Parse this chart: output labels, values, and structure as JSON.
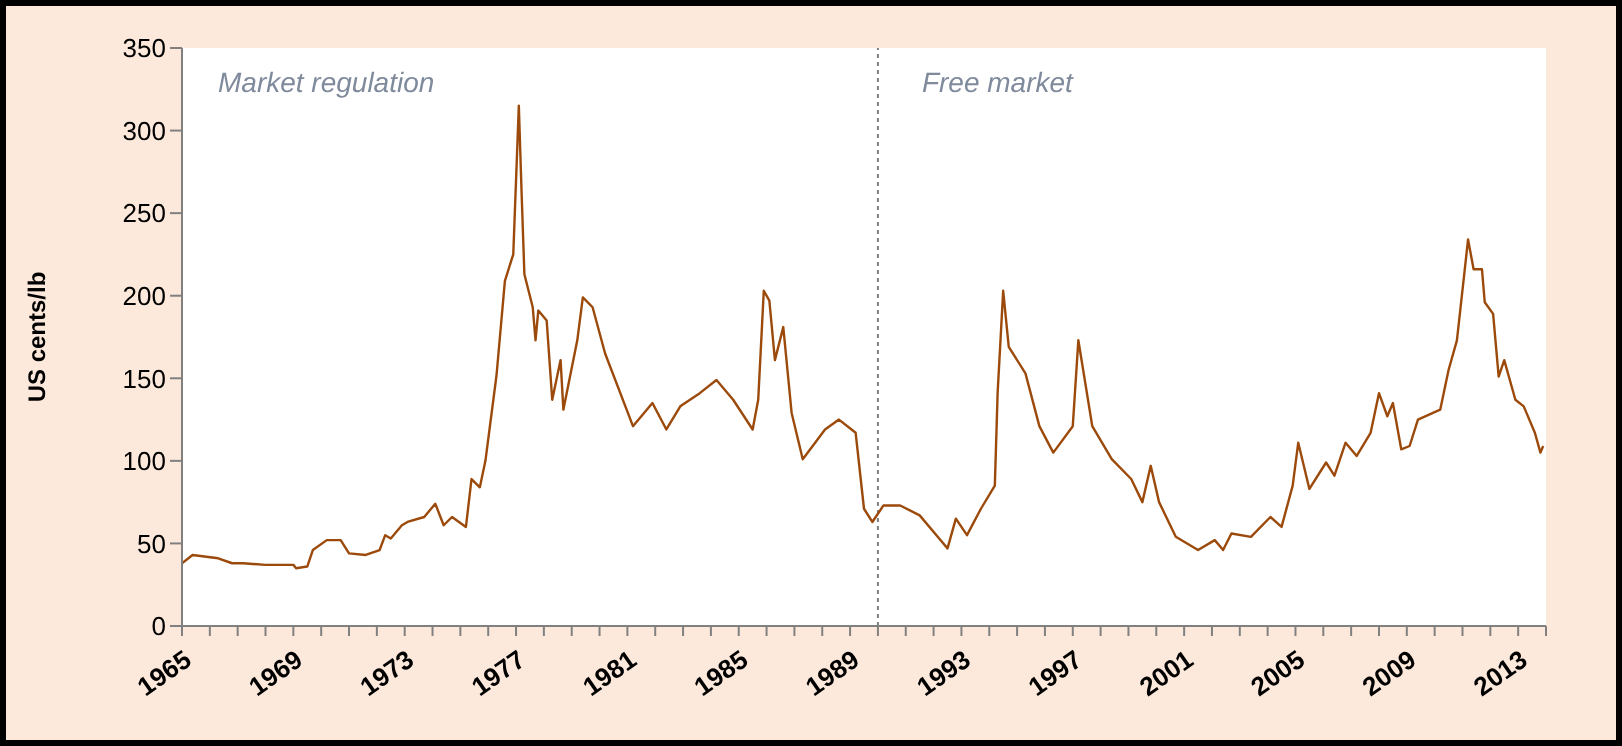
{
  "chart_data": {
    "type": "line",
    "ylabel": "US cents/lb",
    "annotations": [
      "Market regulation",
      "Free market"
    ],
    "x": [
      1965.0,
      1965.38,
      1966.3,
      1966.8,
      1967.2,
      1968.0,
      1969.0,
      1969.1,
      1969.5,
      1969.7,
      1970.2,
      1970.7,
      1971.0,
      1971.6,
      1972.1,
      1972.3,
      1972.5,
      1972.9,
      1973.1,
      1973.7,
      1974.1,
      1974.4,
      1974.7,
      1975.2,
      1975.4,
      1975.7,
      1975.9,
      1976.3,
      1976.6,
      1976.9,
      1977.1,
      1977.2,
      1977.3,
      1977.6,
      1977.7,
      1977.8,
      1978.1,
      1978.3,
      1978.6,
      1978.7,
      1979.2,
      1979.4,
      1979.75,
      1980.2,
      1981.2,
      1981.9,
      1982.4,
      1982.9,
      1983.6,
      1984.2,
      1984.8,
      1985.5,
      1985.7,
      1985.9,
      1986.1,
      1986.3,
      1986.6,
      1986.9,
      1987.3,
      1988.1,
      1988.6,
      1989.2,
      1989.5,
      1989.8,
      1990.2,
      1990.8,
      1991.5,
      1992.2,
      1992.5,
      1992.8,
      1993.2,
      1993.7,
      1994.2,
      1994.3,
      1994.5,
      1994.7,
      1995.3,
      1995.8,
      1996.3,
      1997.0,
      1997.2,
      1997.7,
      1998.4,
      1999.1,
      1999.5,
      1999.8,
      2000.1,
      2000.7,
      2001.5,
      2002.1,
      2002.4,
      2002.7,
      2003.4,
      2004.1,
      2004.5,
      2004.9,
      2005.1,
      2005.5,
      2006.1,
      2006.4,
      2006.8,
      2007.2,
      2007.7,
      2008.0,
      2008.3,
      2008.5,
      2008.8,
      2009.1,
      2009.4,
      2010.2,
      2010.5,
      2010.8,
      2011.2,
      2011.4,
      2011.7,
      2011.8,
      2012.1,
      2012.3,
      2012.5,
      2012.9,
      2013.2,
      2013.6,
      2013.8,
      2013.9
    ],
    "series": [
      {
        "color": "#9c4a0b",
        "values": [
          38,
          43,
          41,
          38,
          38,
          37,
          37,
          35,
          36,
          46,
          52,
          52,
          44,
          43,
          46,
          55,
          53,
          61,
          63,
          66,
          74,
          61,
          66,
          60,
          89,
          84,
          100,
          152,
          209,
          225,
          315,
          262,
          213,
          193,
          173,
          191,
          185,
          137,
          161,
          131,
          173,
          199,
          193,
          165,
          121,
          135,
          119,
          133,
          141,
          149,
          137,
          119,
          137,
          203,
          197,
          161,
          181,
          129,
          101,
          119,
          125,
          117,
          71,
          63,
          73,
          73,
          67,
          53,
          47,
          65,
          55,
          71,
          85,
          141,
          203,
          169,
          153,
          121,
          105,
          121,
          173,
          121,
          101,
          89,
          75,
          97,
          75,
          54,
          46,
          52,
          46,
          56,
          54,
          66,
          60,
          85,
          111,
          83,
          99,
          91,
          111,
          103,
          117,
          141,
          127,
          135,
          107,
          109,
          125,
          131,
          155,
          173,
          234,
          216,
          216,
          196,
          189,
          151,
          161,
          137,
          133,
          117,
          105,
          109
        ]
      }
    ],
    "xlim": [
      1965,
      2014
    ],
    "xticks": [
      1965,
      {
        "value": 1966,
        "label": null
      },
      {
        "value": 1967,
        "label": null
      },
      {
        "value": 1968,
        "label": null
      },
      1969,
      {
        "value": 1970,
        "label": null
      },
      {
        "value": 1971,
        "label": null
      },
      {
        "value": 1972,
        "label": null
      },
      1973,
      {
        "value": 1974,
        "label": null
      },
      {
        "value": 1975,
        "label": null
      },
      {
        "value": 1976,
        "label": null
      },
      1977,
      {
        "value": 1978,
        "label": null
      },
      {
        "value": 1979,
        "label": null
      },
      {
        "value": 1980,
        "label": null
      },
      1981,
      {
        "value": 1982,
        "label": null
      },
      {
        "value": 1983,
        "label": null
      },
      {
        "value": 1984,
        "label": null
      },
      1985,
      {
        "value": 1986,
        "label": null
      },
      {
        "value": 1987,
        "label": null
      },
      {
        "value": 1988,
        "label": null
      },
      1989,
      {
        "value": 1990,
        "label": null
      },
      {
        "value": 1991,
        "label": null
      },
      {
        "value": 1992,
        "label": null
      },
      1993,
      {
        "value": 1994,
        "label": null
      },
      {
        "value": 1995,
        "label": null
      },
      {
        "value": 1996,
        "label": null
      },
      1997,
      {
        "value": 1998,
        "label": null
      },
      {
        "value": 1999,
        "label": null
      },
      {
        "value": 2000,
        "label": null
      },
      2001,
      {
        "value": 2002,
        "label": null
      },
      {
        "value": 2003,
        "label": null
      },
      {
        "value": 2004,
        "label": null
      },
      2005,
      {
        "value": 2006,
        "label": null
      },
      {
        "value": 2007,
        "label": null
      },
      {
        "value": 2008,
        "label": null
      },
      2009,
      {
        "value": 2010,
        "label": null
      },
      {
        "value": 2011,
        "label": null
      },
      {
        "value": 2012,
        "label": null
      },
      2013,
      {
        "value": 2014,
        "label": null
      }
    ],
    "ylim": [
      0,
      350
    ],
    "yticks": [
      0,
      50,
      100,
      150,
      200,
      250,
      300,
      350
    ],
    "ref_lines": [
      {
        "axis": "x",
        "value": 1990,
        "color": "#808080",
        "line_style": "dotted"
      }
    ],
    "grid": false,
    "legend": false,
    "marker": "none",
    "line_style": "solid"
  }
}
